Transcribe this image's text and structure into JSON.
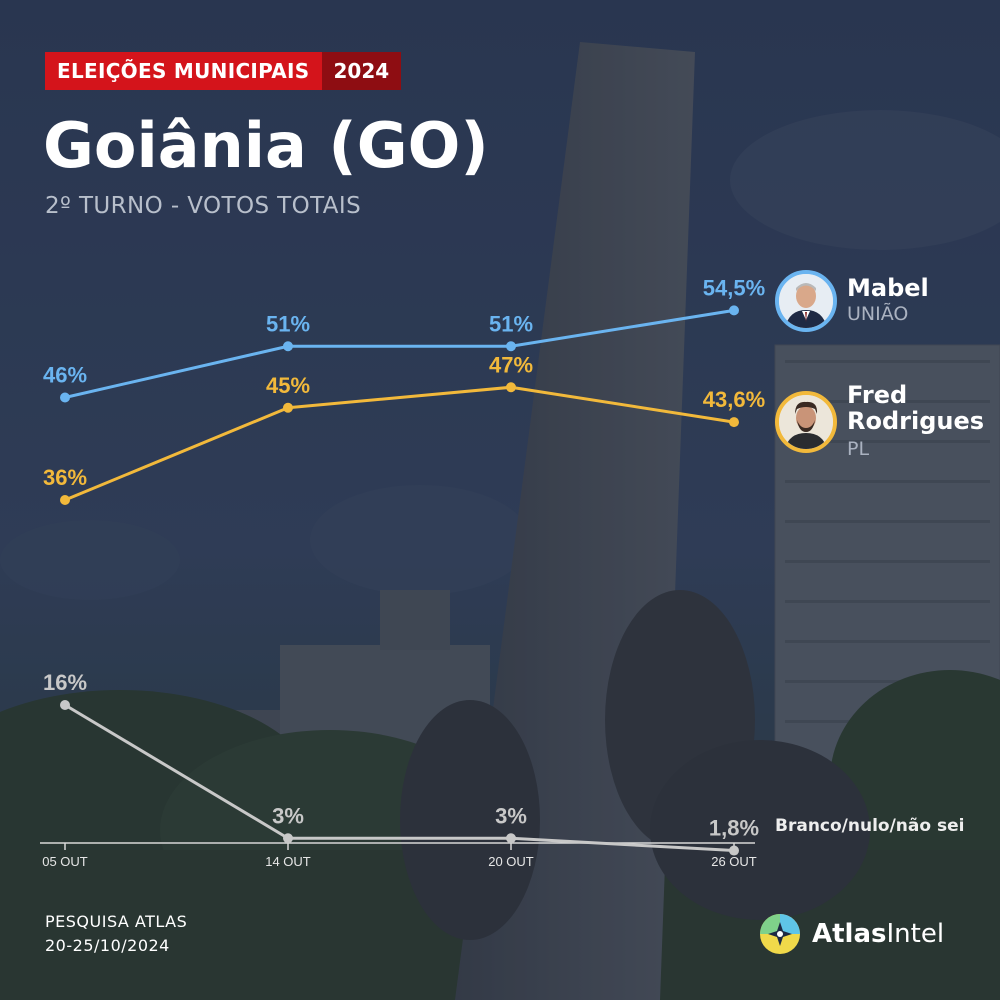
{
  "header": {
    "badge_label": "ELEIÇÕES MUNICIPAIS",
    "badge_year": "2024",
    "title": "Goiânia (GO)",
    "subtitle": "2º TURNO - VOTOS TOTAIS"
  },
  "chart_data": {
    "type": "line",
    "categories": [
      "05 OUT",
      "14 OUT",
      "20 OUT",
      "26 OUT"
    ],
    "ylim": [
      0,
      60
    ],
    "grid": false,
    "series": [
      {
        "name": "Mabel",
        "party": "UNIÃO",
        "color": "#6ab4f0",
        "values": [
          46,
          51,
          51,
          54.5
        ],
        "labels": [
          "46%",
          "51%",
          "51%",
          "54,5%"
        ]
      },
      {
        "name": "Fred Rodrigues",
        "party": "PL",
        "color": "#f2b93b",
        "values": [
          36,
          45,
          47,
          43.6
        ],
        "labels": [
          "36%",
          "45%",
          "47%",
          "43,6%"
        ]
      },
      {
        "name": "Branco/nulo/não sei",
        "color": "#c8c8c8",
        "values": [
          16,
          3,
          3,
          1.8
        ],
        "labels": [
          "16%",
          "3%",
          "3%",
          "1,8%"
        ]
      }
    ]
  },
  "candidates": {
    "mabel": {
      "first": "Mabel",
      "party": "UNIÃO"
    },
    "fred": {
      "first": "Fred",
      "last": "Rodrigues",
      "party": "PL"
    },
    "other": "Branco/nulo/não sei"
  },
  "footer": {
    "source_line1": "PESQUISA ATLAS",
    "source_line2": "20-25/10/2024",
    "logo_bold": "Atlas",
    "logo_thin": "Intel"
  }
}
